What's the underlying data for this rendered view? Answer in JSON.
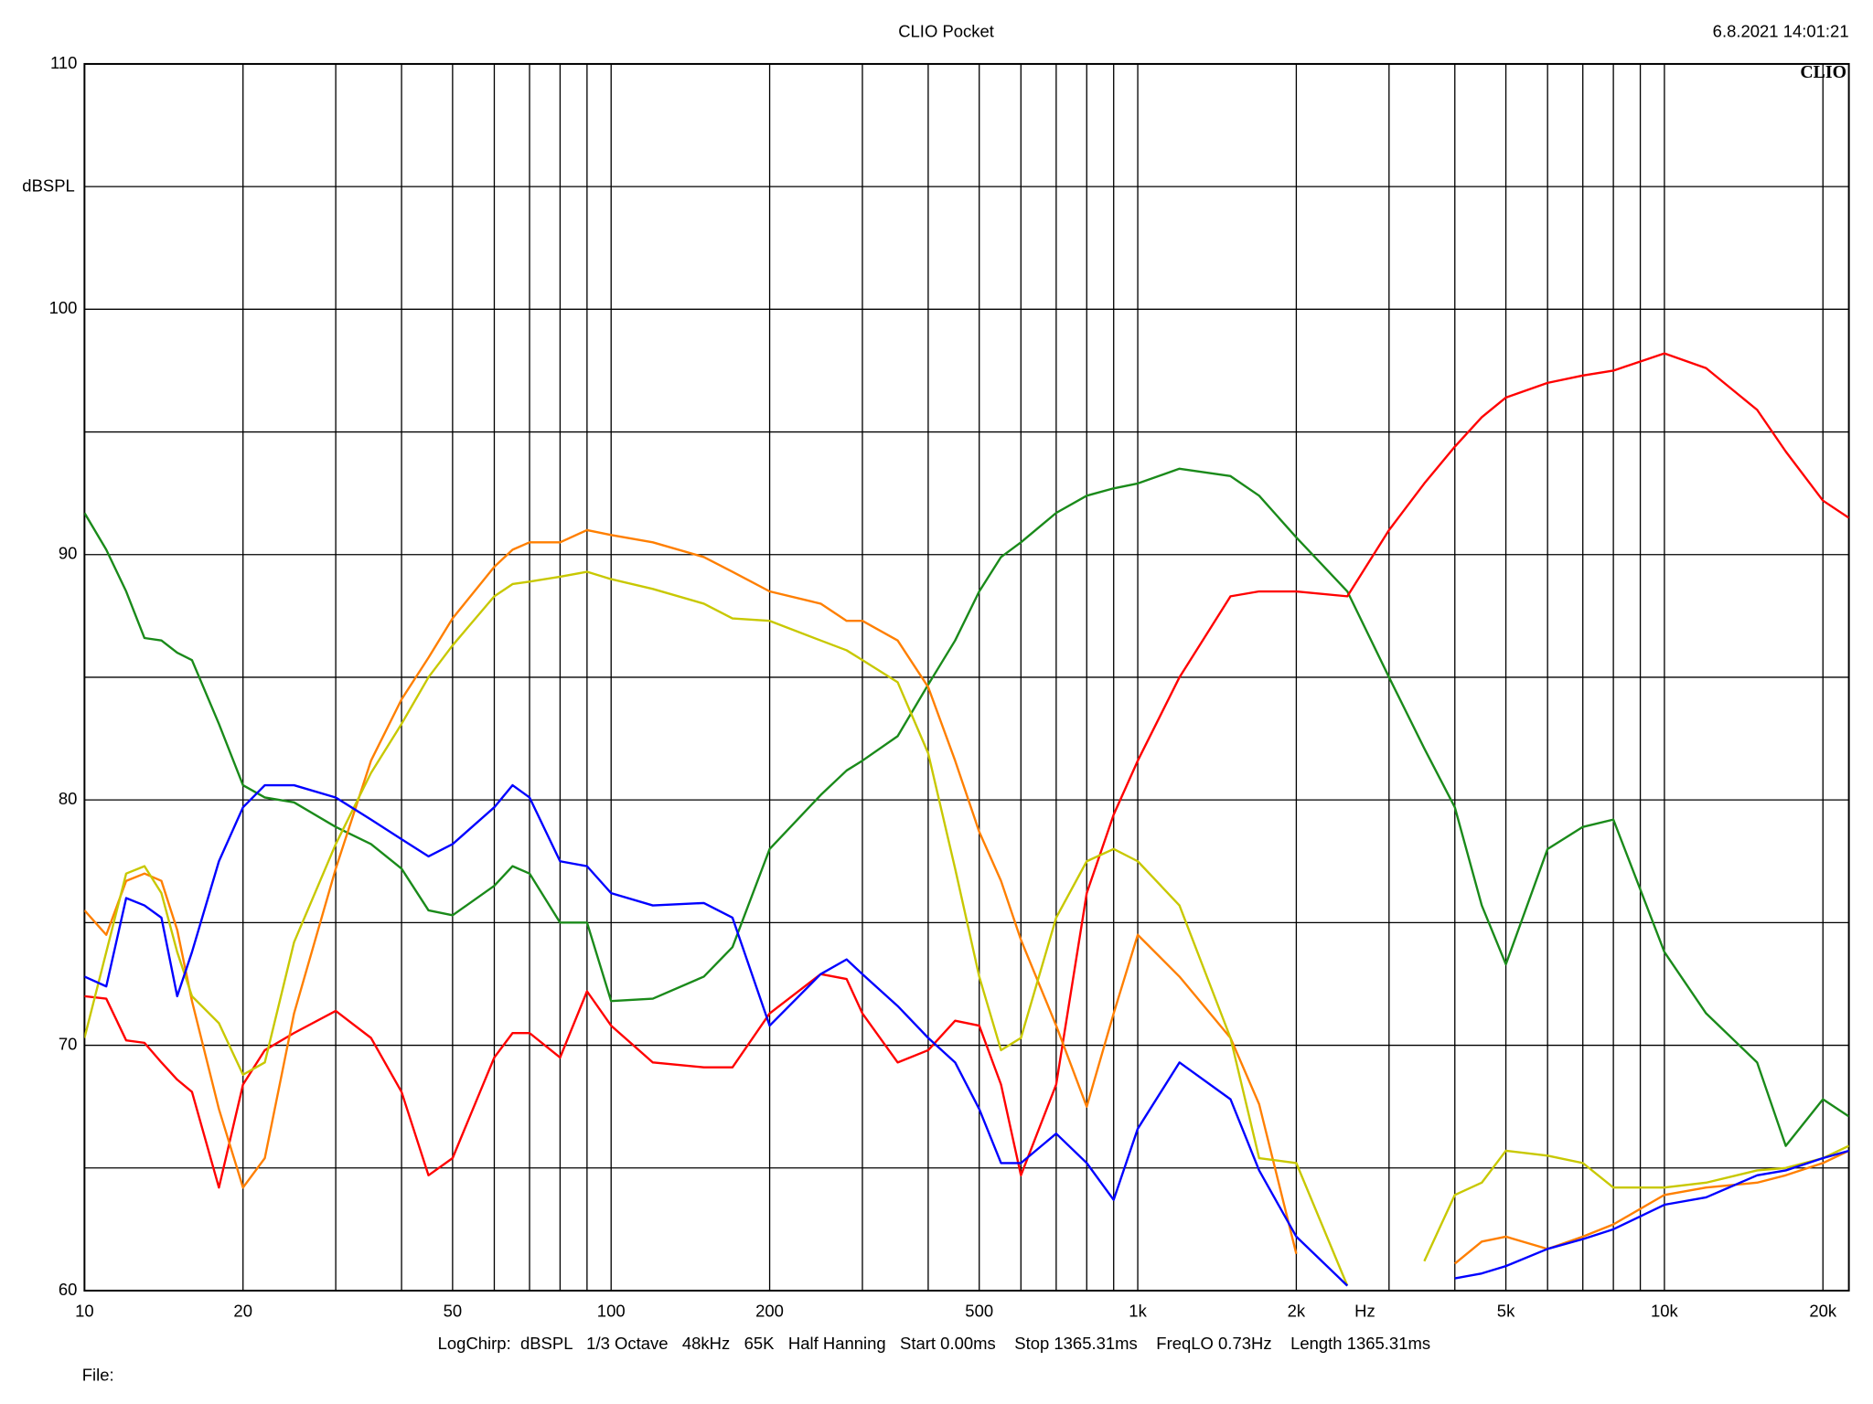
{
  "chart_data": {
    "type": "line",
    "title": "CLIO Pocket",
    "timestamp": "6.8.2021 14:01:21",
    "logo": "CLIO",
    "y_label": "dBSPL",
    "x_label": "Hz",
    "footer": "LogChirp:  dBSPL   1/3 Octave   48kHz   65K   Half Hanning   Start 0.00ms    Stop 1365.31ms    FreqLO 0.73Hz    Length 1365.31ms",
    "file_label": "File:",
    "x_log": true,
    "grid": true,
    "xlim": [
      10,
      22400
    ],
    "ylim": [
      60,
      110
    ],
    "xticks": [
      10,
      20,
      50,
      100,
      200,
      500,
      {
        "value": 1000,
        "label": "1k"
      },
      {
        "value": 2000,
        "label": "2k"
      },
      {
        "value": 5000,
        "label": "5k"
      },
      {
        "value": 10000,
        "label": "10k"
      },
      {
        "value": 20000,
        "label": "20k"
      }
    ],
    "x_minor_ticks": [
      30,
      40,
      60,
      70,
      80,
      90,
      300,
      400,
      600,
      700,
      800,
      900,
      3000,
      4000,
      6000,
      7000,
      8000,
      9000
    ],
    "yticks": [
      60,
      70,
      80,
      90,
      100,
      110
    ],
    "y_minor_ticks": [
      65,
      75,
      85,
      95,
      105
    ],
    "x": [
      10,
      11,
      12,
      13,
      14,
      15,
      16,
      18,
      20,
      22,
      25,
      30,
      35,
      40,
      45,
      50,
      60,
      65,
      70,
      80,
      90,
      100,
      120,
      150,
      170,
      200,
      250,
      280,
      300,
      350,
      400,
      450,
      500,
      550,
      600,
      700,
      800,
      900,
      1000,
      1200,
      1500,
      1700,
      2000,
      2500,
      3000,
      3500,
      4000,
      4500,
      5000,
      6000,
      7000,
      8000,
      10000,
      12000,
      15000,
      17000,
      20000,
      22400
    ],
    "series": [
      {
        "color": "#1a8a1a",
        "values": [
          91.7,
          90.2,
          88.5,
          86.6,
          86.5,
          86,
          85.7,
          83.1,
          80.6,
          80.1,
          79.9,
          78.9,
          78.2,
          77.2,
          75.5,
          75.3,
          76.5,
          77.3,
          77,
          75,
          75,
          71.8,
          71.9,
          72.8,
          74,
          78,
          80.2,
          81.2,
          81.6,
          82.6,
          84.7,
          86.5,
          88.5,
          89.9,
          90.5,
          91.7,
          92.4,
          92.7,
          92.9,
          93.5,
          93.2,
          92.4,
          90.7,
          88.5,
          85,
          82.1,
          79.7,
          75.7,
          73.3,
          78,
          78.9,
          79.2,
          73.8,
          71.3,
          69.3,
          65.9,
          67.8,
          67.1
        ]
      },
      {
        "color": "#ff0000",
        "values": [
          72,
          71.9,
          70.2,
          70.1,
          69.3,
          68.6,
          68.1,
          64.2,
          68.4,
          69.8,
          70.5,
          71.4,
          70.3,
          68.1,
          64.7,
          65.4,
          69.5,
          70.5,
          70.5,
          69.5,
          72.2,
          70.8,
          69.3,
          69.1,
          69.1,
          71.3,
          72.9,
          72.7,
          71.3,
          69.3,
          69.8,
          71,
          70.8,
          68.4,
          64.7,
          68.4,
          76.2,
          79.4,
          81.6,
          85,
          88.3,
          88.5,
          88.5,
          88.3,
          91,
          92.9,
          94.4,
          95.6,
          96.4,
          97,
          97.3,
          97.5,
          98.2,
          97.6,
          95.9,
          94.2,
          92.2,
          91.5
        ]
      },
      {
        "color": "#ff7f00",
        "values": [
          75.5,
          74.5,
          76.7,
          77,
          76.7,
          74.7,
          71.8,
          67.4,
          64.2,
          65.4,
          71.3,
          77.2,
          81.6,
          84.1,
          85.8,
          87.4,
          89.5,
          90.2,
          90.5,
          90.5,
          91,
          90.8,
          90.5,
          89.9,
          89.3,
          88.5,
          88,
          87.3,
          87.3,
          86.5,
          84.6,
          81.6,
          78.7,
          76.7,
          74.3,
          70.8,
          67.5,
          71.3,
          74.5,
          72.8,
          70.3,
          67.6,
          61.5,
          null,
          null,
          null,
          61.1,
          62,
          62.2,
          61.7,
          62.2,
          62.7,
          63.9,
          64.2,
          64.4,
          64.7,
          65.2,
          65.7
        ]
      },
      {
        "color": "#c8c800",
        "values": [
          70.3,
          73.8,
          77,
          77.3,
          76.2,
          73.8,
          72,
          70.9,
          68.8,
          69.3,
          74.2,
          78.2,
          81.1,
          83.1,
          85,
          86.3,
          88.3,
          88.8,
          88.9,
          89.1,
          89.3,
          89,
          88.6,
          88,
          87.4,
          87.3,
          86.5,
          86.1,
          85.7,
          84.8,
          81.9,
          77.2,
          72.8,
          69.8,
          70.3,
          75.2,
          77.5,
          78,
          77.5,
          75.7,
          70.3,
          65.4,
          65.2,
          60.2,
          null,
          61.2,
          63.9,
          64.4,
          65.7,
          65.5,
          65.2,
          64.2,
          64.2,
          64.4,
          64.9,
          65,
          65.4,
          65.9
        ]
      },
      {
        "color": "#0000ff",
        "values": [
          72.8,
          72.4,
          76,
          75.7,
          75.2,
          72,
          73.8,
          77.5,
          79.7,
          80.6,
          80.6,
          80.1,
          79.2,
          78.4,
          77.7,
          78.2,
          79.7,
          80.6,
          80.1,
          77.5,
          77.3,
          76.2,
          75.7,
          75.8,
          75.2,
          70.8,
          72.9,
          73.5,
          72.9,
          71.6,
          70.3,
          69.3,
          67.4,
          65.2,
          65.2,
          66.4,
          65.2,
          63.7,
          66.6,
          69.3,
          67.8,
          64.9,
          62.2,
          60.2,
          null,
          null,
          60.5,
          60.7,
          61,
          61.7,
          62.1,
          62.5,
          63.5,
          63.8,
          64.7,
          64.9,
          65.4,
          65.7
        ]
      }
    ]
  }
}
